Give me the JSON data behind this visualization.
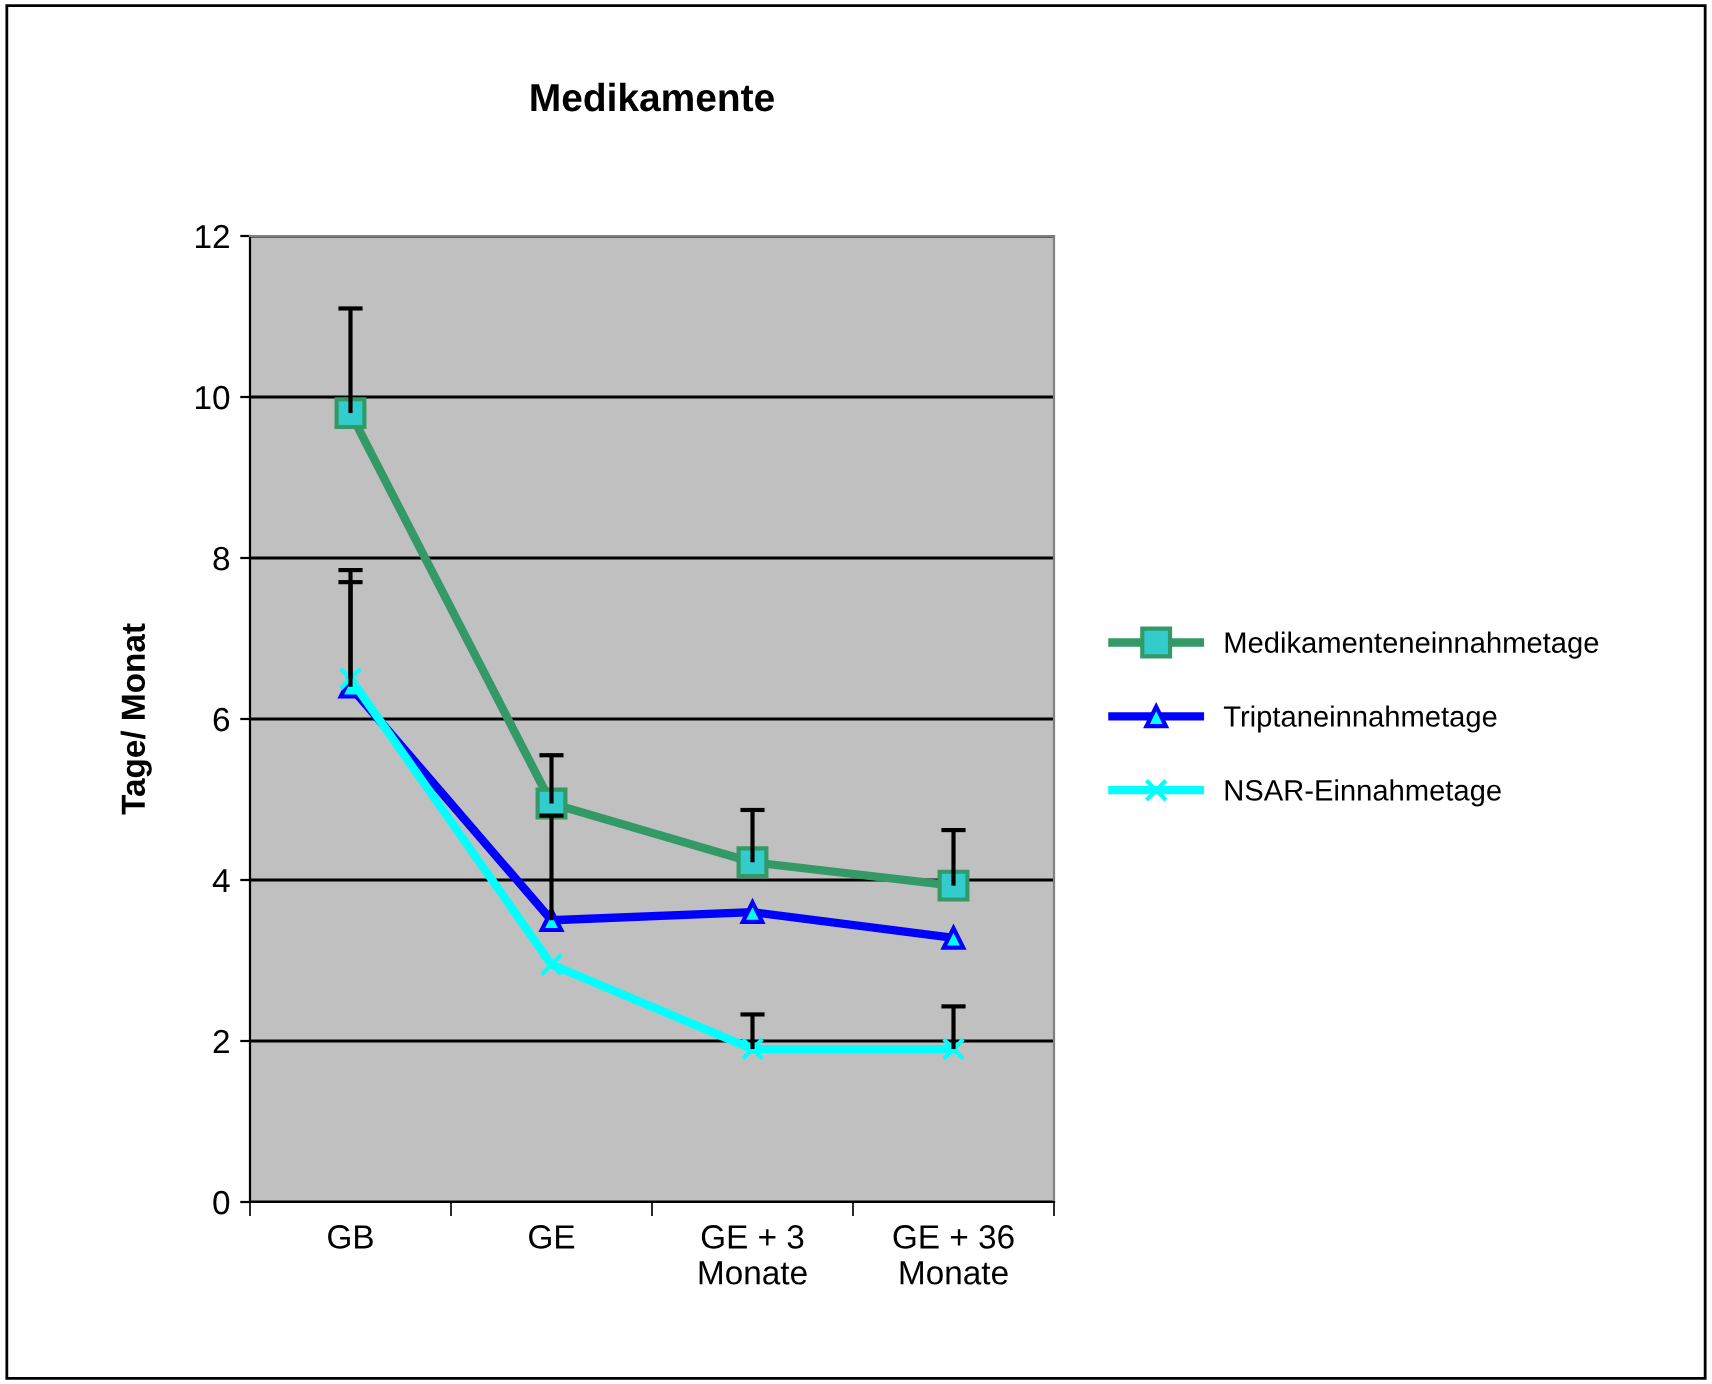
{
  "chart_data": {
    "type": "line",
    "title": "Medikamente",
    "ylabel": "Tage/ Monat",
    "categories": [
      "GB",
      "GE",
      "GE + 3\nMonate",
      "GE + 36\nMonate"
    ],
    "ylim": [
      0,
      12
    ],
    "yticks": [
      0,
      2,
      4,
      6,
      8,
      10,
      12
    ],
    "grid": "y",
    "legend": "right",
    "series": [
      {
        "name": "Medikamenteneinnahmetage",
        "color": "#339966",
        "marker": "square",
        "values": [
          9.8,
          4.95,
          4.22,
          3.93
        ],
        "errors": [
          [
            9.8,
            11.1
          ],
          [
            4.95,
            5.55
          ],
          [
            4.22,
            4.87
          ],
          [
            3.93,
            4.62
          ]
        ]
      },
      {
        "name": "Triptaneinnahmetage",
        "color": "#0000ff",
        "marker": "triangle",
        "values": [
          6.4,
          3.5,
          3.6,
          3.28
        ],
        "errors": [
          [
            6.4,
            7.85
          ],
          [
            3.5,
            4.8
          ],
          null,
          null
        ]
      },
      {
        "name": "NSAR-Einnahmetage",
        "color": "#00ffff",
        "marker": "cross",
        "values": [
          6.5,
          2.95,
          1.9,
          1.9
        ],
        "errors": [
          [
            6.5,
            7.7
          ],
          null,
          [
            1.9,
            2.33
          ],
          [
            1.9,
            2.43
          ]
        ]
      }
    ]
  }
}
